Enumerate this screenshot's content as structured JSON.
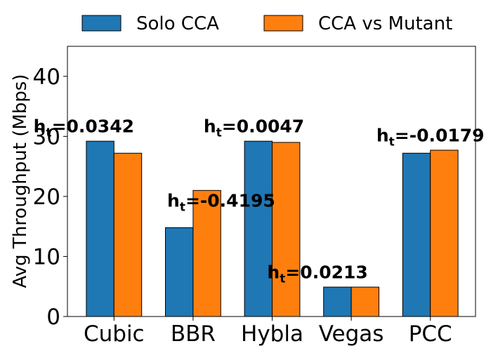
{
  "chart_data": {
    "type": "bar",
    "title": "",
    "xlabel": "",
    "ylabel": "Avg Throughput (Mbps)",
    "ylim": [
      0,
      45
    ],
    "yticks": [
      0,
      10,
      20,
      30,
      40
    ],
    "categories": [
      "Cubic",
      "BBR",
      "Hybla",
      "Vegas",
      "PCC"
    ],
    "series": [
      {
        "name": "Solo CCA",
        "color": "#1f77b4",
        "values": [
          29.2,
          14.8,
          29.2,
          4.9,
          27.2
        ]
      },
      {
        "name": "CCA vs Mutant",
        "color": "#ff7f0e",
        "values": [
          27.2,
          21.0,
          29.0,
          4.9,
          27.7
        ]
      }
    ],
    "annotations": [
      {
        "base": "h",
        "sub": "t",
        "value": "=0.0342"
      },
      {
        "base": "h",
        "sub": "t",
        "value": "=-0.4195"
      },
      {
        "base": "h",
        "sub": "t",
        "value": "=0.0047"
      },
      {
        "base": "h",
        "sub": "t",
        "value": "=0.0213"
      },
      {
        "base": "h",
        "sub": "t",
        "value": "=-0.0179"
      }
    ],
    "legend_position": "top-center",
    "grid": false
  }
}
